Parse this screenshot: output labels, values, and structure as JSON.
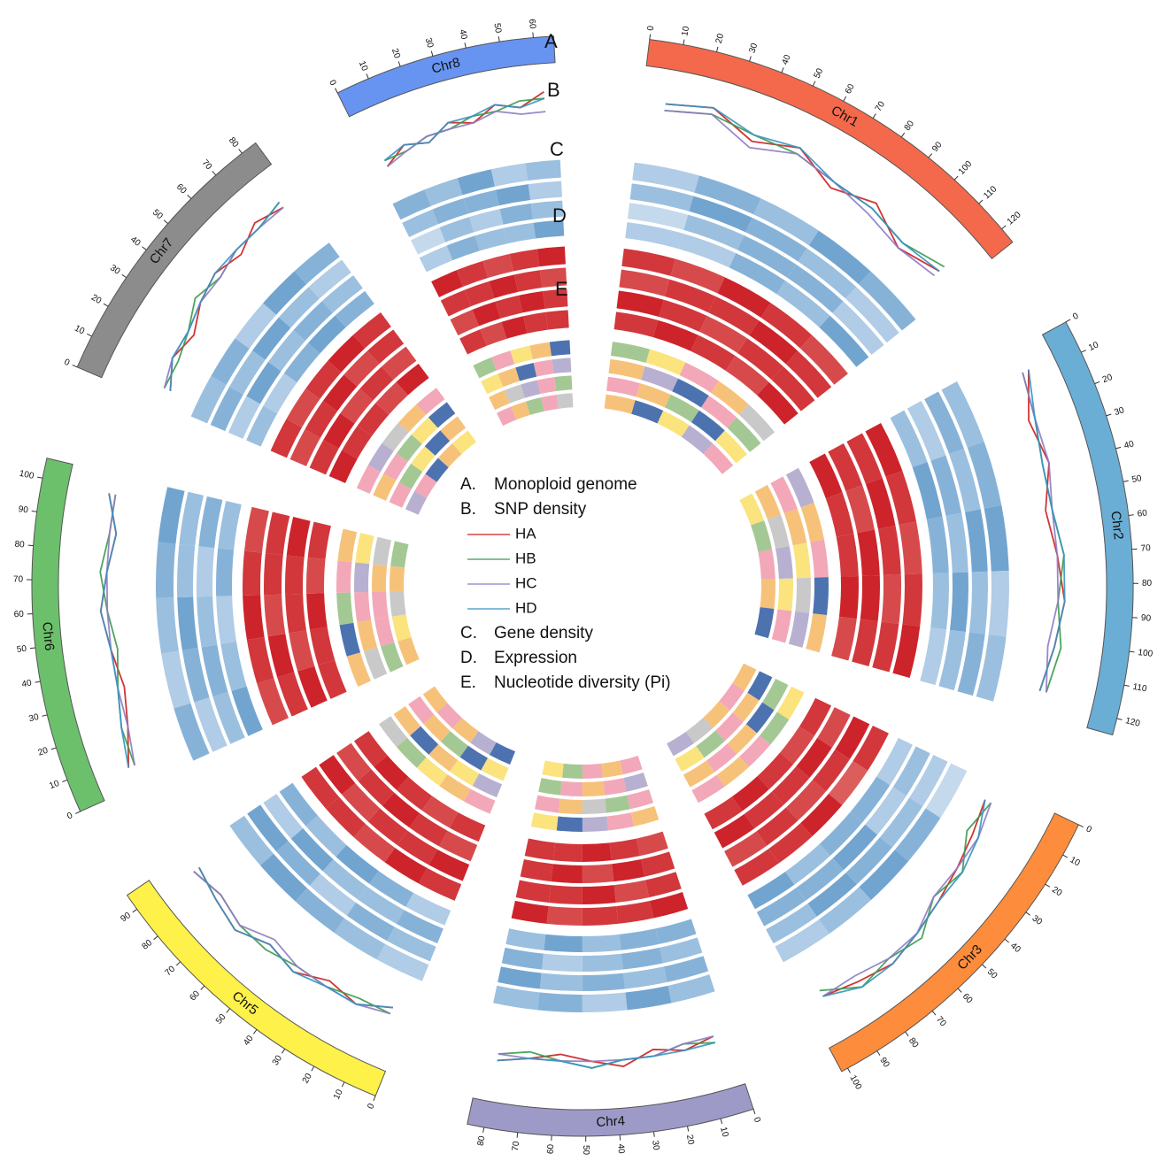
{
  "chart_data": {
    "type": "circos",
    "track_letters": [
      "A",
      "B",
      "C",
      "D",
      "E"
    ],
    "legend": [
      {
        "letter": "A.",
        "label": "Monoploid genome"
      },
      {
        "letter": "B.",
        "label": "SNP density"
      },
      {
        "letter": "C.",
        "label": "Gene density"
      },
      {
        "letter": "D.",
        "label": "Expression"
      },
      {
        "letter": "E.",
        "label": "Nucleotide diversity (Pi)"
      }
    ],
    "chromosomes": [
      {
        "name": "Chr1",
        "length": 125,
        "color": "#f4694b",
        "ticks": [
          0,
          10,
          20,
          30,
          40,
          50,
          60,
          70,
          80,
          90,
          100,
          110,
          120
        ]
      },
      {
        "name": "Chr2",
        "length": 125,
        "color": "#6aaed6",
        "ticks": [
          0,
          10,
          20,
          30,
          40,
          50,
          60,
          70,
          80,
          90,
          100,
          110,
          120
        ]
      },
      {
        "name": "Chr3",
        "length": 102,
        "color": "#fd8d3c",
        "ticks": [
          0,
          10,
          20,
          30,
          40,
          50,
          60,
          70,
          80,
          90,
          100
        ]
      },
      {
        "name": "Chr4",
        "length": 85,
        "color": "#9e9ac8",
        "ticks": [
          0,
          10,
          20,
          30,
          40,
          50,
          60,
          70,
          80
        ]
      },
      {
        "name": "Chr5",
        "length": 95,
        "color": "#fef14a",
        "ticks": [
          0,
          10,
          20,
          30,
          40,
          50,
          60,
          70,
          80,
          90
        ]
      },
      {
        "name": "Chr6",
        "length": 106,
        "color": "#6cc06c",
        "ticks": [
          0,
          10,
          20,
          30,
          40,
          50,
          60,
          70,
          80,
          90,
          100
        ]
      },
      {
        "name": "Chr7",
        "length": 85,
        "color": "#8c8c8c",
        "ticks": [
          0,
          10,
          20,
          30,
          40,
          50,
          60,
          70,
          80
        ]
      },
      {
        "name": "Chr8",
        "length": 66,
        "color": "#6794f0",
        "ticks": [
          0,
          10,
          20,
          30,
          40,
          50,
          60
        ]
      }
    ],
    "snp_density": {
      "ylim": [
        0,
        10
      ],
      "series": [
        {
          "name": "HA",
          "color": "#cc1f1f",
          "values": [
            [
              7,
              8,
              5,
              7,
              4,
              6,
              3,
              5
            ],
            [
              8,
              5,
              6,
              4,
              5,
              6,
              5,
              4
            ],
            [
              2,
              3,
              4,
              5,
              6,
              7,
              6,
              5
            ],
            [
              4,
              5,
              4,
              6,
              5,
              4,
              5,
              6
            ],
            [
              3,
              5,
              4,
              6,
              5,
              7,
              6,
              5
            ],
            [
              7,
              5,
              4,
              5,
              6,
              5,
              4,
              6
            ],
            [
              2,
              4,
              3,
              5,
              6,
              5,
              7,
              6
            ],
            [
              3,
              5,
              4,
              6,
              5,
              7,
              6,
              8
            ]
          ]
        },
        {
          "name": "HB",
          "color": "#3a9a4a",
          "values": [
            [
              6,
              7,
              6,
              6,
              5,
              5,
              4,
              6
            ],
            [
              7,
              6,
              5,
              5,
              6,
              5,
              6,
              5
            ],
            [
              3,
              2,
              5,
              4,
              7,
              6,
              7,
              4
            ],
            [
              5,
              4,
              5,
              5,
              6,
              5,
              4,
              5
            ],
            [
              4,
              4,
              5,
              5,
              6,
              6,
              5,
              6
            ],
            [
              6,
              6,
              5,
              4,
              5,
              6,
              5,
              5
            ],
            [
              3,
              3,
              4,
              6,
              5,
              6,
              6,
              7
            ],
            [
              4,
              4,
              5,
              5,
              6,
              6,
              7,
              7
            ]
          ]
        },
        {
          "name": "HC",
          "color": "#8e7cc3",
          "values": [
            [
              6,
              7,
              4,
              6,
              5,
              4,
              3,
              4
            ],
            [
              7,
              6,
              6,
              5,
              5,
              5,
              4,
              5
            ],
            [
              3,
              4,
              4,
              4,
              6,
              6,
              5,
              5
            ],
            [
              4,
              4,
              5,
              5,
              5,
              5,
              5,
              5
            ],
            [
              4,
              5,
              5,
              5,
              4,
              6,
              5,
              6
            ],
            [
              6,
              5,
              5,
              5,
              5,
              5,
              5,
              5
            ],
            [
              3,
              4,
              4,
              5,
              5,
              6,
              6,
              6
            ],
            [
              3,
              4,
              5,
              5,
              5,
              6,
              5,
              5
            ]
          ]
        },
        {
          "name": "HD",
          "color": "#3a93c3",
          "values": [
            [
              7,
              8,
              6,
              7,
              5,
              5,
              4,
              5
            ],
            [
              8,
              6,
              5,
              5,
              6,
              6,
              5,
              4
            ],
            [
              2,
              4,
              5,
              5,
              6,
              7,
              7,
              5
            ],
            [
              5,
              5,
              5,
              5,
              6,
              5,
              5,
              6
            ],
            [
              3,
              5,
              5,
              6,
              5,
              7,
              6,
              5
            ],
            [
              7,
              6,
              5,
              5,
              6,
              5,
              4,
              6
            ],
            [
              2,
              4,
              4,
              5,
              6,
              6,
              6,
              7
            ],
            [
              4,
              5,
              4,
              6,
              6,
              7,
              6,
              7
            ]
          ]
        }
      ]
    },
    "gene_density": {
      "colors": [
        "#eef4fb",
        "#1f6fb4"
      ],
      "range": [
        0,
        10
      ],
      "tracks": [
        [
          [
            3,
            5,
            4,
            6,
            5
          ],
          [
            4,
            5,
            6,
            3,
            4
          ],
          [
            2,
            5,
            6,
            4,
            3
          ],
          [
            4,
            6,
            3,
            5,
            4
          ],
          [
            3,
            4,
            5,
            6,
            4
          ],
          [
            5,
            3,
            4,
            5,
            6
          ],
          [
            4,
            5,
            3,
            6,
            5
          ],
          [
            5,
            4,
            6,
            3,
            4
          ]
        ],
        [
          [
            4,
            6,
            5,
            4,
            3
          ],
          [
            5,
            4,
            6,
            4,
            5
          ],
          [
            3,
            4,
            5,
            6,
            4
          ],
          [
            5,
            4,
            5,
            4,
            6
          ],
          [
            4,
            5,
            3,
            5,
            6
          ],
          [
            3,
            5,
            6,
            4,
            4
          ],
          [
            5,
            4,
            6,
            4,
            3
          ],
          [
            4,
            5,
            5,
            6,
            3
          ]
        ],
        [
          [
            2,
            4,
            5,
            5,
            3
          ],
          [
            3,
            5,
            4,
            6,
            4
          ],
          [
            4,
            3,
            6,
            5,
            5
          ],
          [
            4,
            5,
            4,
            3,
            5
          ],
          [
            5,
            4,
            4,
            6,
            3
          ],
          [
            4,
            5,
            4,
            3,
            5
          ],
          [
            3,
            6,
            4,
            5,
            4
          ],
          [
            2,
            4,
            3,
            5,
            4
          ]
        ],
        [
          [
            3,
            3,
            5,
            4,
            6
          ],
          [
            4,
            6,
            5,
            4,
            3
          ],
          [
            3,
            5,
            5,
            4,
            6
          ],
          [
            5,
            5,
            4,
            6,
            4
          ],
          [
            3,
            5,
            6,
            4,
            5
          ],
          [
            6,
            4,
            3,
            5,
            4
          ],
          [
            4,
            3,
            5,
            6,
            5
          ],
          [
            3,
            5,
            4,
            4,
            6
          ]
        ]
      ]
    },
    "expression": {
      "colors": [
        "#fbd2c0",
        "#c8101a"
      ],
      "range": [
        0,
        10
      ],
      "tracks": [
        [
          [
            8,
            7,
            9,
            8,
            7
          ],
          [
            9,
            8,
            7,
            8,
            9
          ],
          [
            8,
            6,
            9,
            8,
            8
          ],
          [
            9,
            8,
            8,
            7,
            9
          ],
          [
            8,
            9,
            7,
            8,
            8
          ],
          [
            7,
            8,
            9,
            8,
            7
          ],
          [
            8,
            7,
            8,
            9,
            8
          ],
          [
            9,
            8,
            7,
            8,
            9
          ]
        ],
        [
          [
            7,
            8,
            8,
            9,
            8
          ],
          [
            8,
            9,
            8,
            7,
            8
          ],
          [
            9,
            8,
            7,
            8,
            7
          ],
          [
            8,
            7,
            9,
            8,
            8
          ],
          [
            9,
            8,
            8,
            7,
            9
          ],
          [
            8,
            9,
            7,
            8,
            8
          ],
          [
            7,
            8,
            9,
            7,
            8
          ],
          [
            8,
            8,
            9,
            8,
            7
          ]
        ],
        [
          [
            9,
            8,
            7,
            8,
            8
          ],
          [
            8,
            7,
            9,
            9,
            8
          ],
          [
            7,
            9,
            8,
            8,
            9
          ],
          [
            8,
            9,
            7,
            9,
            8
          ],
          [
            7,
            8,
            9,
            8,
            7
          ],
          [
            9,
            7,
            8,
            8,
            9
          ],
          [
            8,
            9,
            7,
            8,
            7
          ],
          [
            7,
            9,
            8,
            9,
            8
          ]
        ],
        [
          [
            8,
            9,
            8,
            7,
            9
          ],
          [
            9,
            8,
            8,
            9,
            7
          ],
          [
            8,
            7,
            8,
            9,
            8
          ],
          [
            7,
            8,
            9,
            8,
            8
          ],
          [
            8,
            7,
            8,
            9,
            8
          ],
          [
            8,
            8,
            9,
            7,
            8
          ],
          [
            9,
            8,
            8,
            7,
            9
          ],
          [
            8,
            7,
            9,
            8,
            8
          ]
        ]
      ]
    },
    "pi": {
      "colors": [
        "#b8b0d0",
        "#a4c894",
        "#f6c27a",
        "#fbe37d",
        "#f2a8b8",
        "#4d72b0",
        "#c9c9c9"
      ],
      "range": [
        0,
        10
      ],
      "tracks": [
        [
          [
            2,
            5,
            7,
            3,
            9
          ],
          [
            1,
            4,
            6,
            8,
            3
          ],
          [
            5,
            2,
            7,
            4,
            6
          ],
          [
            3,
            6,
            1,
            8,
            5
          ],
          [
            7,
            3,
            5,
            2,
            9
          ],
          [
            4,
            8,
            2,
            6,
            3
          ],
          [
            6,
            1,
            9,
            4,
            7
          ],
          [
            2,
            7,
            5,
            3,
            8
          ]
        ],
        [
          [
            4,
            1,
            8,
            6,
            2
          ],
          [
            7,
            3,
            5,
            9,
            1
          ],
          [
            2,
            8,
            4,
            6,
            3
          ],
          [
            6,
            2,
            9,
            3,
            7
          ],
          [
            1,
            5,
            3,
            8,
            4
          ],
          [
            9,
            4,
            6,
            1,
            5
          ],
          [
            3,
            7,
            2,
            5,
            8
          ],
          [
            5,
            3,
            8,
            6,
            1
          ]
        ],
        [
          [
            6,
            3,
            2,
            8,
            5
          ],
          [
            3,
            9,
            1,
            5,
            7
          ],
          [
            8,
            4,
            6,
            2,
            5
          ],
          [
            1,
            7,
            4,
            6,
            2
          ],
          [
            5,
            8,
            2,
            4,
            6
          ],
          [
            2,
            6,
            7,
            3,
            9
          ],
          [
            7,
            2,
            5,
            8,
            3
          ],
          [
            4,
            9,
            1,
            6,
            2
          ]
        ],
        [
          [
            3,
            8,
            5,
            1,
            6
          ],
          [
            5,
            2,
            7,
            4,
            8
          ],
          [
            4,
            6,
            3,
            9,
            1
          ],
          [
            7,
            3,
            6,
            2,
            5
          ],
          [
            8,
            1,
            4,
            7,
            3
          ],
          [
            3,
            5,
            9,
            4,
            2
          ],
          [
            1,
            6,
            8,
            3,
            5
          ],
          [
            6,
            4,
            2,
            7,
            9
          ]
        ]
      ]
    }
  }
}
